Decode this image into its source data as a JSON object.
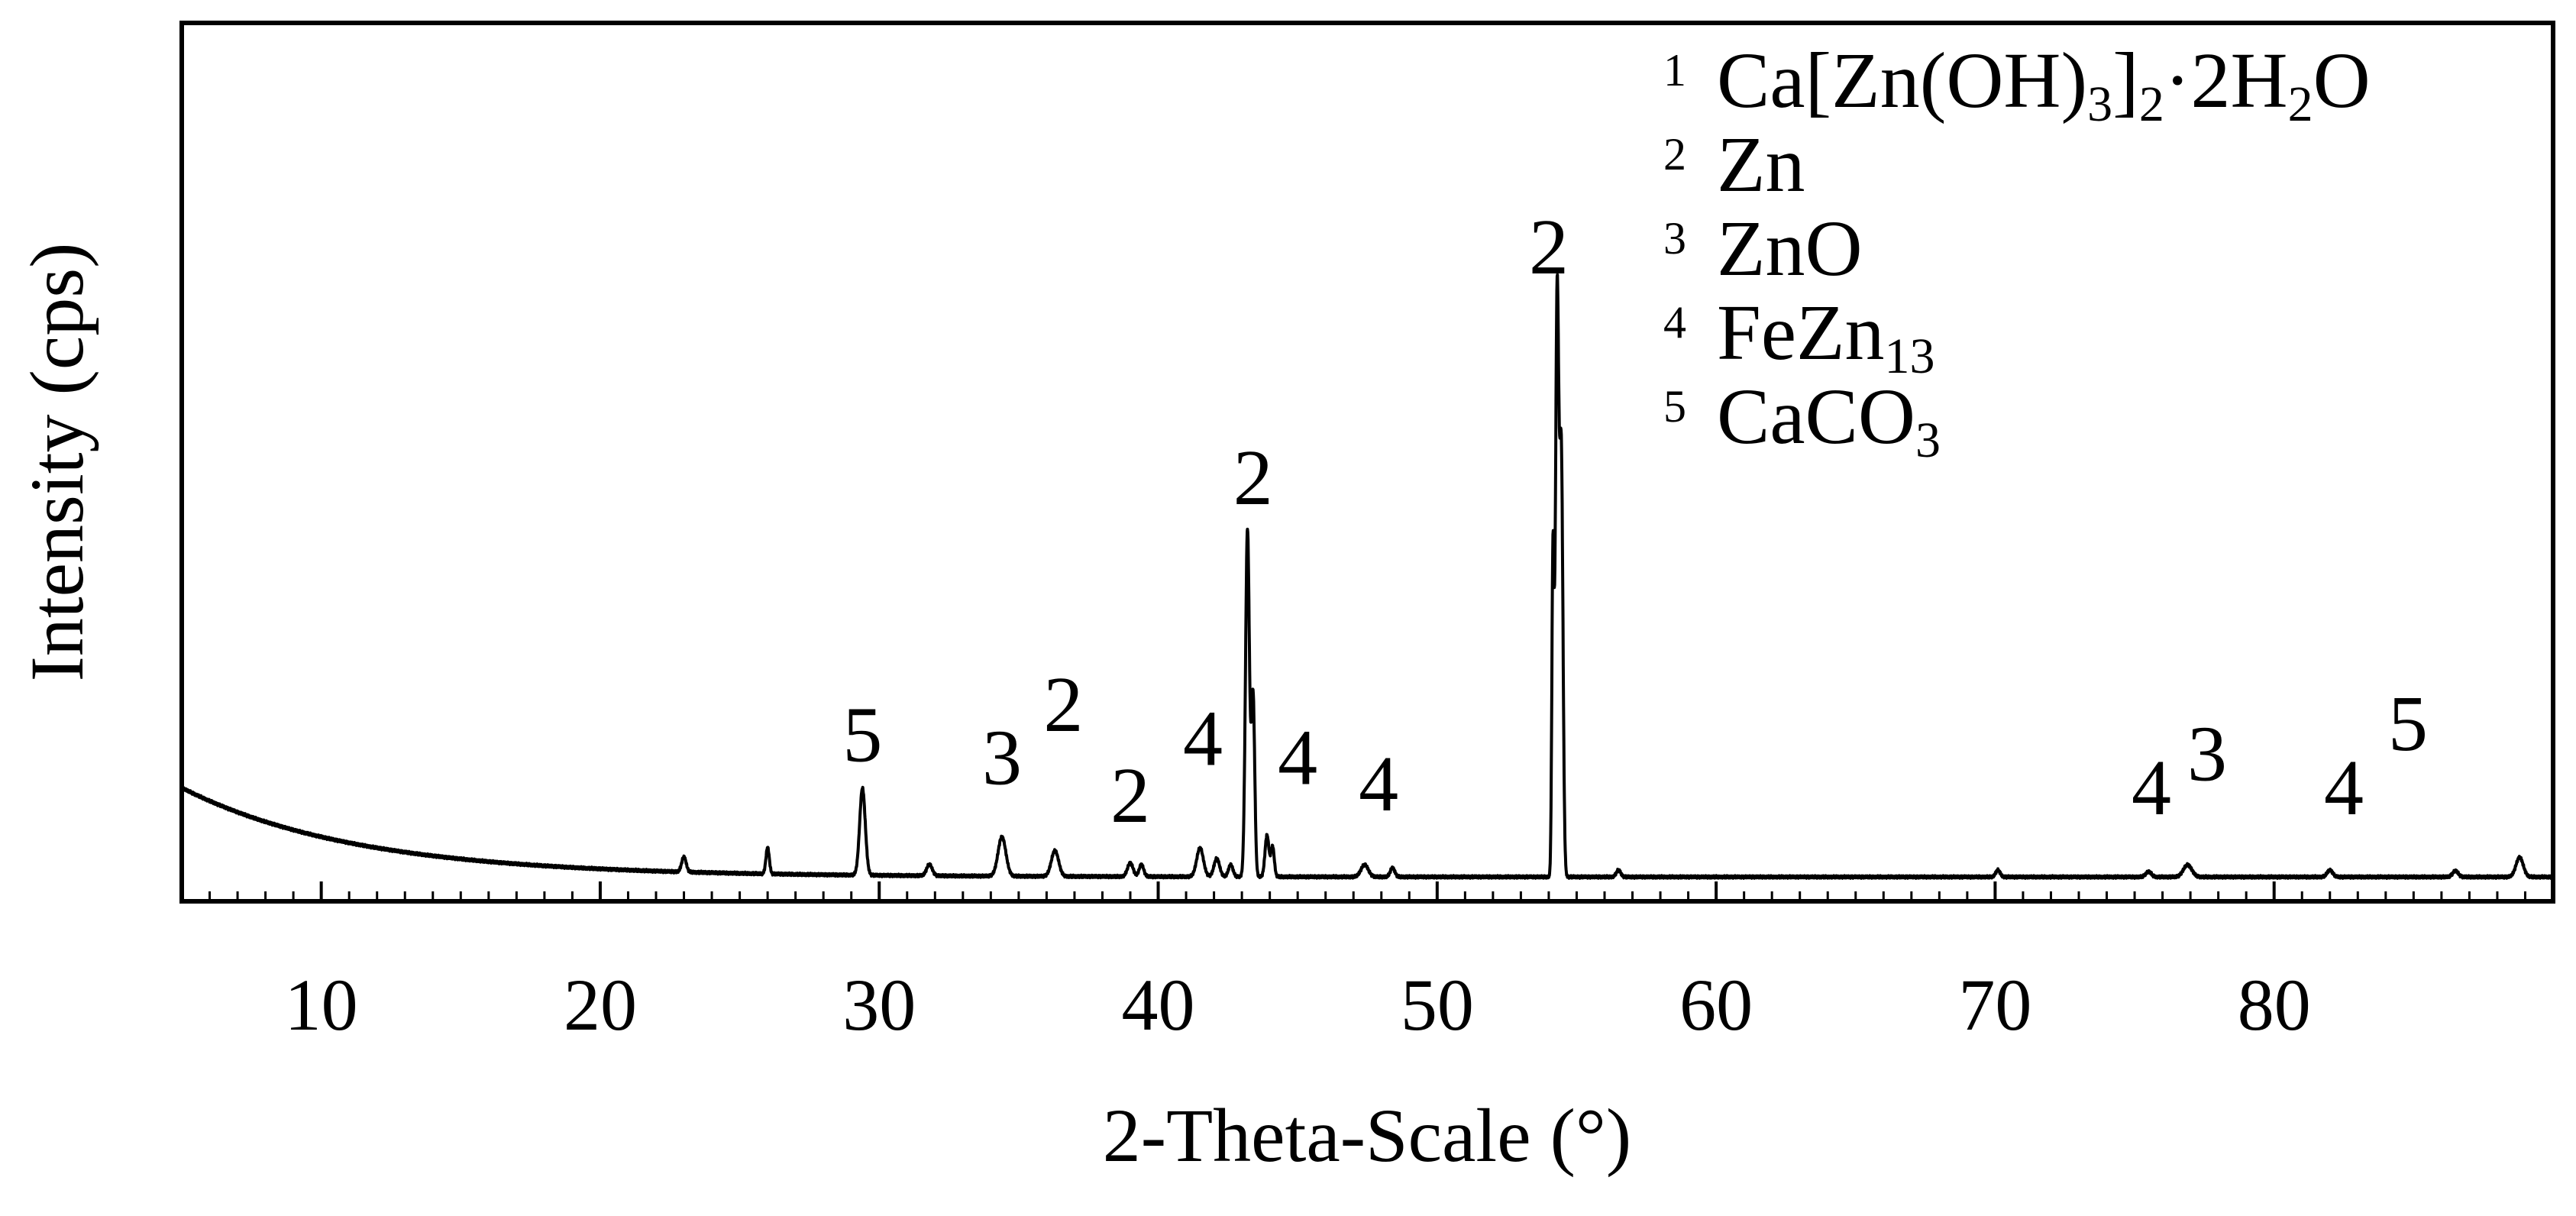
{
  "chart_data": {
    "type": "line",
    "title": "",
    "xlabel": "2-Theta-Scale (°)",
    "ylabel": "Intensity (cps)",
    "xlim": [
      5,
      90
    ],
    "ylim": [
      0,
      100
    ],
    "x_ticks": [
      10,
      20,
      30,
      40,
      50,
      60,
      70,
      80
    ],
    "x_tick_labels": [
      "10",
      "20",
      "30",
      "40",
      "50",
      "60",
      "70",
      "80"
    ],
    "y_ticks_shown": false,
    "grid": false,
    "legend_position": "top-right",
    "line_color": "#000000",
    "background": {
      "start_value": 13,
      "end_value": 1.2,
      "decay": 0.16
    },
    "peaks": [
      {
        "x": 23.0,
        "y": 2.0,
        "w": 0.08
      },
      {
        "x": 26.0,
        "y": 3.5,
        "w": 0.06
      },
      {
        "x": 29.4,
        "y": 11.5,
        "w": 0.1
      },
      {
        "x": 31.8,
        "y": 1.5,
        "w": 0.1
      },
      {
        "x": 34.4,
        "y": 5.2,
        "w": 0.14
      },
      {
        "x": 36.3,
        "y": 3.4,
        "w": 0.13
      },
      {
        "x": 39.0,
        "y": 1.8,
        "w": 0.1
      },
      {
        "x": 39.4,
        "y": 1.6,
        "w": 0.08
      },
      {
        "x": 41.5,
        "y": 3.8,
        "w": 0.12
      },
      {
        "x": 42.1,
        "y": 2.4,
        "w": 0.1
      },
      {
        "x": 42.6,
        "y": 1.6,
        "w": 0.08
      },
      {
        "x": 43.2,
        "y": 46.0,
        "w": 0.07
      },
      {
        "x": 43.4,
        "y": 24.0,
        "w": 0.06
      },
      {
        "x": 43.9,
        "y": 5.5,
        "w": 0.07
      },
      {
        "x": 44.1,
        "y": 4.0,
        "w": 0.06
      },
      {
        "x": 47.4,
        "y": 1.6,
        "w": 0.13
      },
      {
        "x": 48.4,
        "y": 1.2,
        "w": 0.08
      },
      {
        "x": 54.3,
        "y": 77.0,
        "w": 0.06
      },
      {
        "x": 54.45,
        "y": 55.0,
        "w": 0.06
      },
      {
        "x": 54.15,
        "y": 42.0,
        "w": 0.04
      },
      {
        "x": 56.5,
        "y": 0.9,
        "w": 0.08
      },
      {
        "x": 70.1,
        "y": 0.9,
        "w": 0.08
      },
      {
        "x": 75.5,
        "y": 0.7,
        "w": 0.1
      },
      {
        "x": 76.9,
        "y": 1.6,
        "w": 0.15
      },
      {
        "x": 82.0,
        "y": 0.9,
        "w": 0.1
      },
      {
        "x": 86.5,
        "y": 0.8,
        "w": 0.1
      },
      {
        "x": 88.8,
        "y": 2.6,
        "w": 0.13
      }
    ],
    "annotations": [
      {
        "text": "5",
        "x": 29.4,
        "y": 16.5
      },
      {
        "text": "3",
        "x": 34.4,
        "y": 13.5
      },
      {
        "text": "2",
        "x": 36.6,
        "y": 20.5
      },
      {
        "text": "2",
        "x": 39.0,
        "y": 8.5
      },
      {
        "text": "4",
        "x": 41.6,
        "y": 16.0
      },
      {
        "text": "4",
        "x": 45.0,
        "y": 13.5
      },
      {
        "text": "4",
        "x": 47.9,
        "y": 10.0
      },
      {
        "text": "2",
        "x": 43.4,
        "y": 50.5
      },
      {
        "text": "2",
        "x": 54.0,
        "y": 81.0
      },
      {
        "text": "4",
        "x": 75.6,
        "y": 9.5
      },
      {
        "text": "3",
        "x": 77.6,
        "y": 14.0
      },
      {
        "text": "4",
        "x": 82.5,
        "y": 9.5
      },
      {
        "text": "5",
        "x": 84.8,
        "y": 18.0
      }
    ],
    "legend": [
      {
        "num": "1",
        "parts": [
          {
            "t": "Ca[Zn(OH)"
          },
          {
            "t": "3",
            "sub": true
          },
          {
            "t": "]"
          },
          {
            "t": "2",
            "sub": true
          },
          {
            "t": "·2H"
          },
          {
            "t": "2",
            "sub": true
          },
          {
            "t": "O"
          }
        ]
      },
      {
        "num": "2",
        "parts": [
          {
            "t": "Zn"
          }
        ]
      },
      {
        "num": "3",
        "parts": [
          {
            "t": "ZnO"
          }
        ]
      },
      {
        "num": "4",
        "parts": [
          {
            "t": "FeZn"
          },
          {
            "t": "13",
            "sub": true
          }
        ]
      },
      {
        "num": "5",
        "parts": [
          {
            "t": "CaCO"
          },
          {
            "t": "3",
            "sub": true
          }
        ]
      }
    ]
  }
}
